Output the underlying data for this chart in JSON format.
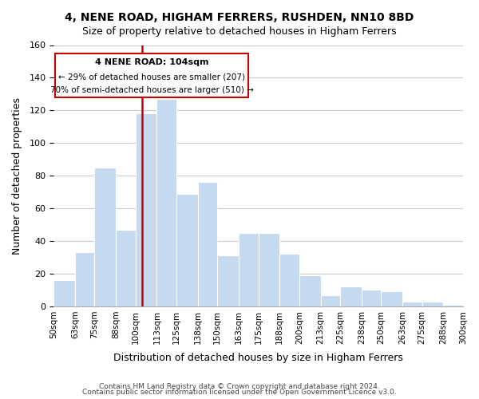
{
  "title": "4, NENE ROAD, HIGHAM FERRERS, RUSHDEN, NN10 8BD",
  "subtitle": "Size of property relative to detached houses in Higham Ferrers",
  "xlabel": "Distribution of detached houses by size in Higham Ferrers",
  "ylabel": "Number of detached properties",
  "footer1": "Contains HM Land Registry data © Crown copyright and database right 2024.",
  "footer2": "Contains public sector information licensed under the Open Government Licence v3.0.",
  "bar_edges": [
    50,
    63,
    75,
    88,
    100,
    113,
    125,
    138,
    150,
    163,
    175,
    188,
    200,
    213,
    225,
    238,
    250,
    263,
    275,
    288,
    300
  ],
  "bar_heights": [
    16,
    33,
    85,
    47,
    118,
    127,
    69,
    76,
    31,
    45,
    45,
    32,
    19,
    7,
    12,
    10,
    9,
    3,
    3,
    1
  ],
  "bar_color": "#c5d9f1",
  "bar_edge_color": "#ffffff",
  "annotation_title": "4 NENE ROAD: 104sqm",
  "annotation_line1": "← 29% of detached houses are smaller (207)",
  "annotation_line2": "70% of semi-detached houses are larger (510) →",
  "redline_x": 104,
  "annotation_box_color": "#ffffff",
  "annotation_box_edge_color": "#cc0000",
  "redline_color": "#cc0000",
  "ylim": [
    0,
    160
  ],
  "tick_labels": [
    "50sqm",
    "63sqm",
    "75sqm",
    "88sqm",
    "100sqm",
    "113sqm",
    "125sqm",
    "138sqm",
    "150sqm",
    "163sqm",
    "175sqm",
    "188sqm",
    "200sqm",
    "213sqm",
    "225sqm",
    "238sqm",
    "250sqm",
    "263sqm",
    "275sqm",
    "288sqm",
    "300sqm"
  ],
  "background_color": "#ffffff",
  "grid_color": "#cccccc"
}
